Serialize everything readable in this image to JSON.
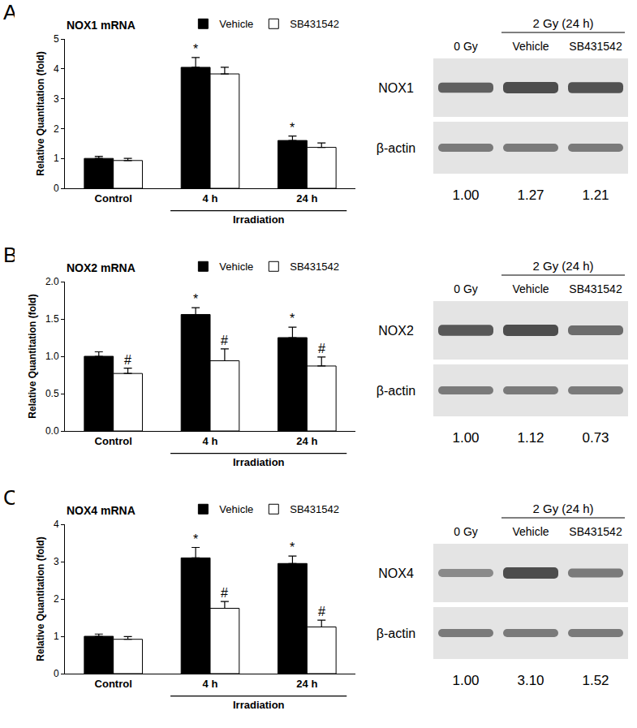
{
  "chart_data": [
    {
      "type": "bar",
      "panel": "A",
      "title": "NOX1 mRNA",
      "categories": [
        "Control",
        "4 h",
        "24 h"
      ],
      "series": [
        {
          "name": "Vehicle",
          "color": "#000000",
          "values": [
            1.0,
            4.05,
            1.6
          ],
          "errors": [
            0.07,
            0.33,
            0.15
          ]
        },
        {
          "name": "SB431542",
          "color": "#ffffff",
          "values": [
            0.93,
            3.83,
            1.37
          ],
          "errors": [
            0.07,
            0.22,
            0.15
          ]
        }
      ],
      "ylabel": "Relative Quantitation (fold)",
      "ylim": [
        0,
        5
      ],
      "yticks": [
        0,
        1,
        2,
        3,
        4,
        5
      ],
      "legend": "top",
      "annotations": [
        {
          "text": "*",
          "series": "Vehicle",
          "category": "4 h"
        },
        {
          "text": "*",
          "series": "Vehicle",
          "category": "24 h"
        }
      ],
      "group_label": {
        "text": "Irradiation",
        "categories": [
          "4 h",
          "24 h"
        ]
      },
      "blot": {
        "group_label": "2 Gy (24 h)",
        "lanes": [
          "0 Gy",
          "Vehicle",
          "SB431542"
        ],
        "rows": [
          "NOX1",
          "β-actin"
        ],
        "values": [
          1.0,
          1.27,
          1.21
        ],
        "value_labels": [
          "1.00",
          "1.27",
          "1.21"
        ]
      }
    },
    {
      "type": "bar",
      "panel": "B",
      "title": "NOX2 mRNA",
      "categories": [
        "Control",
        "4 h",
        "24 h"
      ],
      "series": [
        {
          "name": "Vehicle",
          "color": "#000000",
          "values": [
            1.0,
            1.56,
            1.25
          ],
          "errors": [
            0.06,
            0.09,
            0.14
          ]
        },
        {
          "name": "SB431542",
          "color": "#ffffff",
          "values": [
            0.77,
            0.94,
            0.87
          ],
          "errors": [
            0.07,
            0.16,
            0.12
          ]
        }
      ],
      "ylabel": "Relative Quantitation (fold)",
      "ylim": [
        0,
        2
      ],
      "yticks": [
        {
          "value": 0,
          "label": "0.0"
        },
        {
          "value": 0.5,
          "label": "0.5"
        },
        {
          "value": 1,
          "label": "1.0"
        },
        {
          "value": 1.5,
          "label": "1.5"
        },
        {
          "value": 2,
          "label": "2.0"
        }
      ],
      "legend": "top",
      "annotations": [
        {
          "text": "#",
          "series": "SB431542",
          "category": "Control"
        },
        {
          "text": "*",
          "series": "Vehicle",
          "category": "4 h"
        },
        {
          "text": "#",
          "series": "SB431542",
          "category": "4 h"
        },
        {
          "text": "*",
          "series": "Vehicle",
          "category": "24 h"
        },
        {
          "text": "#",
          "series": "SB431542",
          "category": "24 h"
        }
      ],
      "group_label": {
        "text": "Irradiation",
        "categories": [
          "4 h",
          "24 h"
        ]
      },
      "blot": {
        "group_label": "2 Gy (24 h)",
        "lanes": [
          "0 Gy",
          "Vehicle",
          "SB431542"
        ],
        "rows": [
          "NOX2",
          "β-actin"
        ],
        "values": [
          1.0,
          1.12,
          0.73
        ],
        "value_labels": [
          "1.00",
          "1.12",
          "0.73"
        ]
      }
    },
    {
      "type": "bar",
      "panel": "C",
      "title": "NOX4 mRNA",
      "categories": [
        "Control",
        "4 h",
        "24 h"
      ],
      "series": [
        {
          "name": "Vehicle",
          "color": "#000000",
          "values": [
            1.0,
            3.1,
            2.95
          ],
          "errors": [
            0.06,
            0.28,
            0.2
          ]
        },
        {
          "name": "SB431542",
          "color": "#ffffff",
          "values": [
            0.92,
            1.75,
            1.25
          ],
          "errors": [
            0.07,
            0.18,
            0.18
          ]
        }
      ],
      "ylabel": "Relative Quantitation (fold)",
      "ylim": [
        0,
        4
      ],
      "yticks": [
        0,
        1,
        2,
        3,
        4
      ],
      "legend": "top",
      "annotations": [
        {
          "text": "*",
          "series": "Vehicle",
          "category": "4 h"
        },
        {
          "text": "#",
          "series": "SB431542",
          "category": "4 h"
        },
        {
          "text": "*",
          "series": "Vehicle",
          "category": "24 h"
        },
        {
          "text": "#",
          "series": "SB431542",
          "category": "24 h"
        }
      ],
      "group_label": {
        "text": "Irradiation",
        "categories": [
          "4 h",
          "24 h"
        ]
      },
      "blot": {
        "group_label": "2 Gy (24 h)",
        "lanes": [
          "0 Gy",
          "Vehicle",
          "SB431542"
        ],
        "rows": [
          "NOX4",
          "β-actin"
        ],
        "values": [
          1.0,
          3.1,
          1.52
        ],
        "value_labels": [
          "1.00",
          "3.10",
          "1.52"
        ]
      }
    }
  ]
}
